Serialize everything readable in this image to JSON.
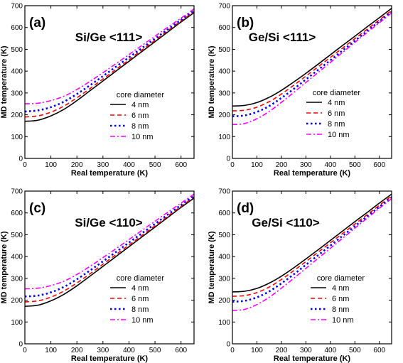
{
  "chart_data": [
    {
      "type": "line",
      "panel_label": "(a)",
      "title": "Si/Ge <111>",
      "xlabel": "Real temperature (K)",
      "ylabel": "MD temperature (K)",
      "xlim": [
        0,
        650
      ],
      "ylim": [
        0,
        700
      ],
      "xticks": [
        0,
        100,
        200,
        300,
        400,
        500,
        600
      ],
      "yticks": [
        0,
        100,
        200,
        300,
        400,
        500,
        600,
        700
      ],
      "legend_title": "core diameter",
      "legend_position": "right",
      "x": [
        0,
        50,
        100,
        150,
        200,
        250,
        300,
        350,
        400,
        450,
        500,
        550,
        600,
        650
      ],
      "series": [
        {
          "name": "4 nm",
          "color": "#000000",
          "dash": "solid",
          "values": [
            170,
            175,
            195,
            225,
            265,
            310,
            355,
            400,
            445,
            490,
            535,
            580,
            625,
            668
          ]
        },
        {
          "name": "6 nm",
          "color": "#ff0000",
          "dash": "dash",
          "values": [
            190,
            195,
            212,
            240,
            278,
            320,
            364,
            408,
            452,
            497,
            541,
            586,
            630,
            673
          ]
        },
        {
          "name": "8 nm",
          "color": "#0000ff",
          "dash": "dot",
          "values": [
            215,
            220,
            235,
            260,
            295,
            335,
            377,
            420,
            463,
            506,
            549,
            592,
            635,
            678
          ]
        },
        {
          "name": "10 nm",
          "color": "#ff00ff",
          "dash": "dashdot",
          "values": [
            250,
            253,
            265,
            285,
            316,
            353,
            393,
            434,
            476,
            518,
            560,
            602,
            643,
            685
          ]
        }
      ]
    },
    {
      "type": "line",
      "panel_label": "(b)",
      "title": "Ge/Si <111>",
      "xlabel": "Real temperature (K)",
      "ylabel": "MD temperature (K)",
      "xlim": [
        0,
        650
      ],
      "ylim": [
        0,
        700
      ],
      "xticks": [
        0,
        100,
        200,
        300,
        400,
        500,
        600
      ],
      "yticks": [
        0,
        100,
        200,
        300,
        400,
        500,
        600,
        700
      ],
      "legend_title": "core diameter",
      "legend_position": "bottom-right",
      "x": [
        0,
        50,
        100,
        150,
        200,
        250,
        300,
        350,
        400,
        450,
        500,
        550,
        600,
        650
      ],
      "series": [
        {
          "name": "4 nm",
          "color": "#000000",
          "dash": "solid",
          "values": [
            240,
            243,
            256,
            280,
            312,
            350,
            390,
            432,
            475,
            518,
            560,
            603,
            645,
            688
          ]
        },
        {
          "name": "6 nm",
          "color": "#ff0000",
          "dash": "dash",
          "values": [
            218,
            221,
            235,
            260,
            295,
            335,
            377,
            420,
            463,
            506,
            549,
            592,
            635,
            678
          ]
        },
        {
          "name": "8 nm",
          "color": "#0000ff",
          "dash": "dot",
          "values": [
            193,
            197,
            213,
            240,
            277,
            318,
            362,
            406,
            450,
            495,
            539,
            584,
            628,
            672
          ]
        },
        {
          "name": "10 nm",
          "color": "#ff00ff",
          "dash": "dashdot",
          "values": [
            155,
            160,
            182,
            215,
            257,
            302,
            348,
            394,
            440,
            486,
            532,
            577,
            622,
            667
          ]
        }
      ]
    },
    {
      "type": "line",
      "panel_label": "(c)",
      "title": "Si/Ge <110>",
      "xlabel": "Real temperature (K)",
      "ylabel": "MD temperature (K)",
      "xlim": [
        0,
        650
      ],
      "ylim": [
        0,
        700
      ],
      "xticks": [
        0,
        100,
        200,
        300,
        400,
        500,
        600
      ],
      "yticks": [
        0,
        100,
        200,
        300,
        400,
        500,
        600,
        700
      ],
      "legend_title": "core diameter",
      "legend_position": "right",
      "x": [
        0,
        50,
        100,
        150,
        200,
        250,
        300,
        350,
        400,
        450,
        500,
        550,
        600,
        650
      ],
      "series": [
        {
          "name": "4 nm",
          "color": "#000000",
          "dash": "solid",
          "values": [
            172,
            177,
            197,
            227,
            266,
            310,
            355,
            400,
            445,
            490,
            535,
            580,
            625,
            668
          ]
        },
        {
          "name": "6 nm",
          "color": "#ff0000",
          "dash": "dash",
          "values": [
            192,
            197,
            214,
            242,
            279,
            321,
            365,
            409,
            453,
            497,
            541,
            586,
            630,
            673
          ]
        },
        {
          "name": "8 nm",
          "color": "#0000ff",
          "dash": "dot",
          "values": [
            217,
            221,
            236,
            261,
            296,
            336,
            378,
            421,
            464,
            507,
            550,
            593,
            636,
            678
          ]
        },
        {
          "name": "10 nm",
          "color": "#ff00ff",
          "dash": "dashdot",
          "values": [
            252,
            255,
            267,
            287,
            318,
            355,
            395,
            436,
            478,
            520,
            562,
            604,
            645,
            686
          ]
        }
      ]
    },
    {
      "type": "line",
      "panel_label": "(d)",
      "title": "Ge/Si <110>",
      "xlabel": "Real temperature (K)",
      "ylabel": "MD temperature (K)",
      "xlim": [
        0,
        650
      ],
      "ylim": [
        0,
        700
      ],
      "xticks": [
        0,
        100,
        200,
        300,
        400,
        500,
        600
      ],
      "yticks": [
        0,
        100,
        200,
        300,
        400,
        500,
        600,
        700
      ],
      "legend_title": "core diameter",
      "legend_position": "bottom-right",
      "x": [
        0,
        50,
        100,
        150,
        200,
        250,
        300,
        350,
        400,
        450,
        500,
        550,
        600,
        650
      ],
      "series": [
        {
          "name": "4 nm",
          "color": "#000000",
          "dash": "solid",
          "values": [
            238,
            241,
            254,
            278,
            310,
            348,
            389,
            431,
            474,
            517,
            560,
            602,
            645,
            686
          ]
        },
        {
          "name": "6 nm",
          "color": "#ff0000",
          "dash": "dash",
          "values": [
            218,
            221,
            235,
            260,
            295,
            335,
            377,
            420,
            463,
            506,
            549,
            592,
            635,
            678
          ]
        },
        {
          "name": "8 nm",
          "color": "#0000ff",
          "dash": "dot",
          "values": [
            193,
            197,
            213,
            240,
            277,
            318,
            362,
            406,
            450,
            495,
            539,
            584,
            628,
            672
          ]
        },
        {
          "name": "10 nm",
          "color": "#ff00ff",
          "dash": "dashdot",
          "values": [
            153,
            158,
            180,
            213,
            255,
            300,
            346,
            392,
            438,
            484,
            530,
            576,
            621,
            666
          ]
        }
      ]
    }
  ]
}
